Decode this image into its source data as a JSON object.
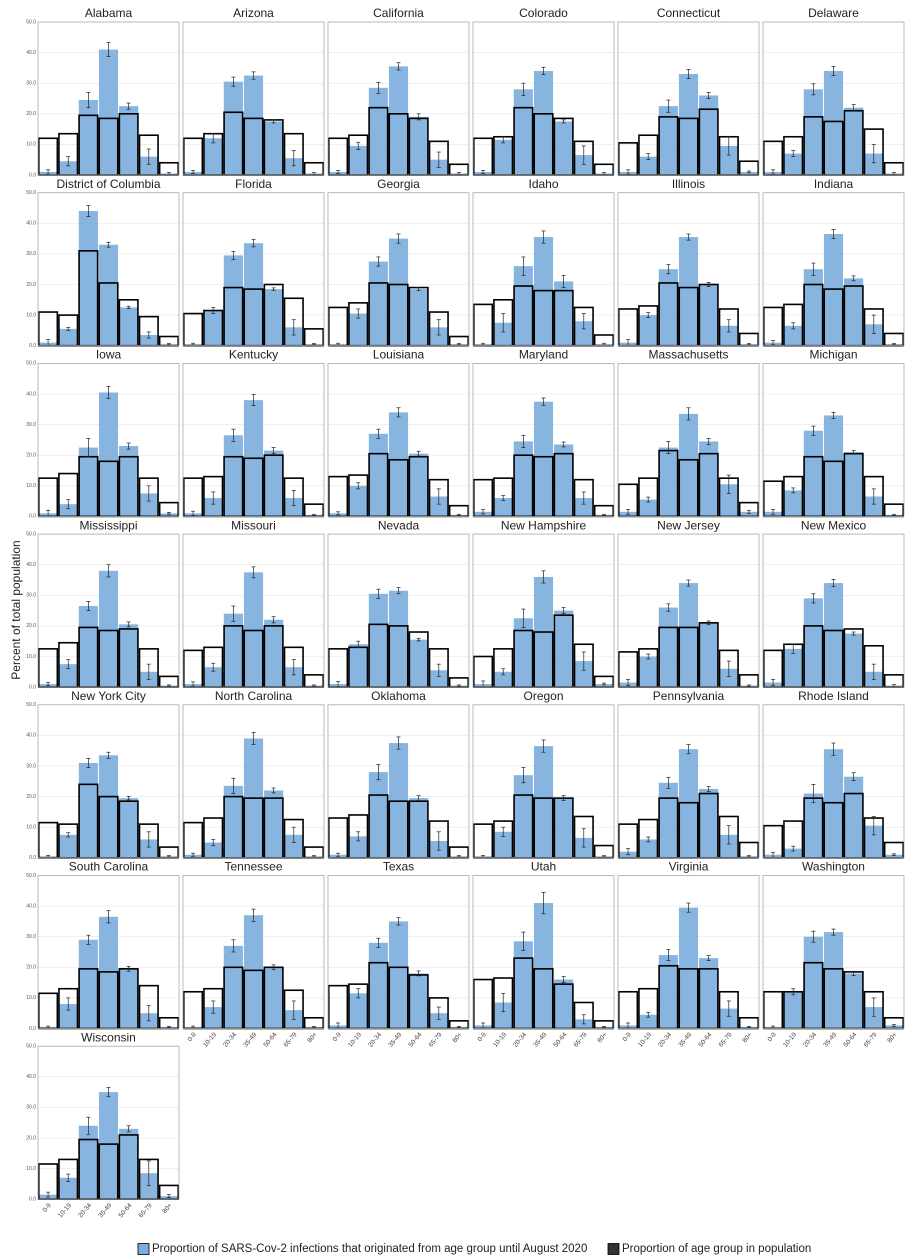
{
  "chart_data": {
    "type": "bar",
    "ylabel": "Percent of total population",
    "categories": [
      "0-9",
      "10-19",
      "20-34",
      "35-49",
      "50-64",
      "65-79",
      "80+"
    ],
    "ylim": [
      0,
      50
    ],
    "yticks": [
      {
        "value": 0,
        "label": "0.0"
      },
      {
        "value": 10,
        "label": "10.0"
      },
      {
        "value": 20,
        "label": "20.0"
      },
      {
        "value": 30,
        "label": "30.0"
      },
      {
        "value": 40,
        "label": "40.0"
      },
      {
        "value": 50,
        "label": "50.0"
      }
    ],
    "grid": true,
    "legend": "bottom",
    "series": [
      {
        "name": "Proportion of SARS-Cov-2 infections that originated from age group until August 2020",
        "color": "#7aaddc"
      },
      {
        "name": "Proportion of age group in population",
        "color": "#333333"
      }
    ],
    "panels": [
      {
        "title": "Alabama",
        "infections": [
          1,
          4.5,
          24.5,
          41,
          22.5,
          6,
          0.5
        ],
        "errors": [
          0.7,
          1.5,
          2.5,
          2.3,
          1,
          2.5,
          0.3
        ],
        "population": [
          12,
          13.5,
          19.5,
          18.5,
          20,
          13,
          4
        ]
      },
      {
        "title": "Arizona",
        "infections": [
          1,
          12,
          30.5,
          32.5,
          17.5,
          5.5,
          0.5
        ],
        "errors": [
          0.5,
          1.5,
          1.5,
          1.2,
          0.5,
          2.5,
          0.3
        ],
        "population": [
          12,
          13.5,
          20.5,
          18.5,
          18,
          13.5,
          4
        ]
      },
      {
        "title": "California",
        "infections": [
          1,
          9.5,
          28.5,
          35.5,
          19,
          5,
          0.5
        ],
        "errors": [
          0.5,
          1.2,
          1.8,
          1.2,
          1,
          2.5,
          0.3
        ],
        "population": [
          12,
          13,
          22,
          20,
          18.5,
          11,
          3.5
        ]
      },
      {
        "title": "Colorado",
        "infections": [
          1,
          11.5,
          28,
          34,
          17.5,
          6.5,
          0.5
        ],
        "errors": [
          0.5,
          1,
          2,
          1.2,
          0.5,
          3,
          0.3
        ],
        "population": [
          12,
          12.5,
          22,
          20,
          18.5,
          11,
          3.5
        ]
      },
      {
        "title": "Connecticut",
        "infections": [
          1,
          6,
          22.5,
          33,
          26,
          9.5,
          1
        ],
        "errors": [
          0.7,
          1,
          2,
          1.5,
          1,
          3,
          0.3
        ],
        "population": [
          10.5,
          13,
          19,
          18.5,
          21.5,
          12.5,
          4.5
        ]
      },
      {
        "title": "Delaware",
        "infections": [
          1,
          7,
          28,
          34,
          22,
          7,
          0.5
        ],
        "errors": [
          0.7,
          1,
          1.8,
          1.5,
          1,
          3,
          0.3
        ],
        "population": [
          11,
          12.5,
          19,
          17.5,
          21,
          15,
          4
        ]
      },
      {
        "title": "District of Columbia",
        "infections": [
          1,
          5.5,
          44,
          33,
          12.5,
          3.5,
          0.5
        ],
        "errors": [
          1,
          0.5,
          1.8,
          0.8,
          0.4,
          1,
          0.2
        ],
        "population": [
          11,
          10,
          31,
          20.5,
          15,
          9.5,
          3
        ]
      },
      {
        "title": "Florida",
        "infections": [
          0.5,
          11.5,
          29.5,
          33.5,
          18.5,
          6,
          0.5
        ],
        "errors": [
          0.3,
          1,
          1.3,
          1.2,
          0.4,
          2.5,
          0.2
        ],
        "population": [
          10.5,
          11.5,
          19,
          18.5,
          20,
          15.5,
          5.5
        ]
      },
      {
        "title": "Georgia",
        "infections": [
          0.5,
          10.5,
          27.5,
          35,
          18.5,
          6,
          0.5
        ],
        "errors": [
          0.3,
          1.5,
          1.5,
          1.5,
          0.5,
          2.5,
          0.2
        ],
        "population": [
          12.5,
          14,
          20.5,
          20,
          19,
          11,
          3
        ]
      },
      {
        "title": "Idaho",
        "infections": [
          0.5,
          7.5,
          26,
          35.5,
          21,
          8,
          0.5
        ],
        "errors": [
          0.3,
          3,
          3,
          2,
          2,
          2.5,
          0.3
        ],
        "population": [
          13.5,
          15,
          19.5,
          18,
          18,
          12.5,
          3.5
        ]
      },
      {
        "title": "Illinois",
        "infections": [
          1,
          10,
          25,
          35.5,
          20,
          6.5,
          0.5
        ],
        "errors": [
          1,
          0.8,
          1.5,
          1,
          0.7,
          2,
          0.2
        ],
        "population": [
          12,
          13,
          20.5,
          19,
          20,
          12,
          4
        ]
      },
      {
        "title": "Indiana",
        "infections": [
          1,
          6.5,
          25,
          36.5,
          22,
          7,
          0.5
        ],
        "errors": [
          0.7,
          1,
          2,
          1.5,
          0.8,
          3,
          0.2
        ],
        "population": [
          12.5,
          13.5,
          20,
          18.5,
          19.5,
          12,
          4
        ]
      },
      {
        "title": "Iowa",
        "infections": [
          1,
          4,
          22.5,
          40.5,
          23,
          7.5,
          1
        ],
        "errors": [
          1,
          1.5,
          3,
          2,
          1,
          2.5,
          0.3
        ],
        "population": [
          12.5,
          14,
          19.5,
          18,
          19.5,
          12.5,
          4.5
        ]
      },
      {
        "title": "Kentucky",
        "infections": [
          1,
          6,
          26.5,
          38,
          21.5,
          6,
          0.5
        ],
        "errors": [
          0.7,
          2,
          2,
          1.8,
          1,
          2.5,
          0.2
        ],
        "population": [
          12.5,
          13,
          19.5,
          19,
          20,
          12.5,
          4
        ]
      },
      {
        "title": "Louisiana",
        "infections": [
          1,
          10,
          27,
          34,
          20.5,
          6.5,
          0.5
        ],
        "errors": [
          0.5,
          1,
          1.5,
          1.5,
          0.8,
          2.5,
          0.2
        ],
        "population": [
          13,
          13.5,
          20.5,
          18.5,
          19.5,
          12,
          3.5
        ]
      },
      {
        "title": "Maryland",
        "infections": [
          1.5,
          6,
          24.5,
          37.5,
          23.5,
          6,
          0.5
        ],
        "errors": [
          0.7,
          0.8,
          2,
          1.2,
          0.8,
          2,
          0.2
        ],
        "population": [
          12,
          12.5,
          20,
          19.5,
          20.5,
          12,
          3.5
        ]
      },
      {
        "title": "Massachusetts",
        "infections": [
          1.5,
          5.5,
          22.5,
          33.5,
          24.5,
          10.5,
          1.5
        ],
        "errors": [
          0.8,
          0.8,
          2,
          2,
          1,
          3,
          0.5
        ],
        "population": [
          10.5,
          12.5,
          21.5,
          18.5,
          20.5,
          12.5,
          4.5
        ]
      },
      {
        "title": "Michigan",
        "infections": [
          1.5,
          8.5,
          28,
          33,
          21,
          6.5,
          0.5
        ],
        "errors": [
          0.8,
          0.8,
          1.5,
          1,
          0.5,
          2.5,
          0.2
        ],
        "population": [
          11.5,
          13,
          19.5,
          18,
          20.5,
          13,
          4
        ]
      },
      {
        "title": "Mississippi",
        "infections": [
          1,
          7.5,
          26.5,
          38,
          20.5,
          5,
          0.5
        ],
        "errors": [
          0.5,
          1.5,
          1.5,
          2,
          0.8,
          2.5,
          0.2
        ],
        "population": [
          12.5,
          14.5,
          19.5,
          18.5,
          19,
          12.5,
          3.5
        ]
      },
      {
        "title": "Missouri",
        "infections": [
          1,
          6.5,
          24,
          37.5,
          22,
          6.5,
          0.5
        ],
        "errors": [
          0.7,
          1.3,
          2.5,
          1.8,
          1,
          2.5,
          0.2
        ],
        "population": [
          12,
          13,
          20,
          18.5,
          20,
          13,
          4
        ]
      },
      {
        "title": "Nevada",
        "infections": [
          1,
          14,
          30.5,
          31.5,
          15.5,
          5.5,
          0.5
        ],
        "errors": [
          0.8,
          1,
          1.5,
          1,
          0.4,
          2,
          0.2
        ],
        "population": [
          12.5,
          13,
          20.5,
          20,
          18,
          12.5,
          3
        ]
      },
      {
        "title": "New Hampshire",
        "infections": [
          1,
          5,
          22.5,
          36,
          25,
          8.5,
          1
        ],
        "errors": [
          1,
          1,
          3,
          2,
          1,
          3,
          0.3
        ],
        "population": [
          10,
          12.5,
          18.5,
          18,
          23.5,
          14,
          3.5
        ]
      },
      {
        "title": "New Jersey",
        "infections": [
          1.5,
          10,
          26,
          34,
          21,
          6,
          0.5
        ],
        "errors": [
          1,
          0.8,
          1.2,
          1,
          0.6,
          2.5,
          0.2
        ],
        "population": [
          11.5,
          12.5,
          19.5,
          19.5,
          21,
          12,
          4
        ]
      },
      {
        "title": "New Mexico",
        "infections": [
          1.5,
          12.5,
          29,
          34,
          17.5,
          5,
          0.5
        ],
        "errors": [
          1,
          1.5,
          1.5,
          1.2,
          0.5,
          2.5,
          0.3
        ],
        "population": [
          12,
          14,
          20,
          18.5,
          19,
          13.5,
          4
        ]
      },
      {
        "title": "New York City",
        "infections": [
          0.5,
          7.5,
          31,
          33.5,
          19.5,
          6,
          0.5
        ],
        "errors": [
          0.3,
          0.7,
          1.5,
          1,
          0.6,
          2.5,
          0.2
        ],
        "population": [
          11.5,
          11,
          24,
          20,
          18.5,
          11,
          3.5
        ]
      },
      {
        "title": "North Carolina",
        "infections": [
          1,
          5,
          23.5,
          39,
          22,
          7.5,
          0.5
        ],
        "errors": [
          0.5,
          1,
          2.5,
          2,
          0.8,
          2.5,
          0.2
        ],
        "population": [
          11.5,
          13,
          20,
          19.5,
          19.5,
          12.5,
          3.5
        ]
      },
      {
        "title": "Oklahoma",
        "infections": [
          1,
          7,
          28,
          37.5,
          19.5,
          5.5,
          0.5
        ],
        "errors": [
          0.5,
          1.5,
          2.5,
          2,
          0.8,
          3,
          0.2
        ],
        "population": [
          13,
          14,
          20.5,
          18.5,
          18.5,
          12,
          3.5
        ]
      },
      {
        "title": "Oregon",
        "infections": [
          0.5,
          8.5,
          27,
          36.5,
          19.5,
          6.5,
          0.5
        ],
        "errors": [
          0.3,
          1.5,
          2.5,
          2,
          0.8,
          3,
          0.2
        ],
        "population": [
          11,
          12,
          20.5,
          19.5,
          19.5,
          13.5,
          4
        ]
      },
      {
        "title": "Pennsylvania",
        "infections": [
          2,
          6,
          24.5,
          35.5,
          22.5,
          7.5,
          0.5
        ],
        "errors": [
          1,
          0.8,
          1.8,
          1.5,
          0.8,
          3,
          0.2
        ],
        "population": [
          11,
          12.5,
          19.5,
          18,
          21,
          13.5,
          5
        ]
      },
      {
        "title": "Rhode Island",
        "infections": [
          1,
          3,
          21,
          35.5,
          26.5,
          10.5,
          1
        ],
        "errors": [
          0.8,
          0.8,
          3,
          2,
          1.3,
          3,
          0.3
        ],
        "population": [
          10.5,
          12,
          19.5,
          18,
          21,
          13,
          5
        ]
      },
      {
        "title": "South Carolina",
        "infections": [
          0.5,
          8,
          29,
          36.5,
          19.5,
          5,
          0.5
        ],
        "errors": [
          0.3,
          2,
          1.5,
          2,
          0.8,
          2.5,
          0.2
        ],
        "population": [
          11.5,
          13,
          19.5,
          18.5,
          19.5,
          14,
          3.5
        ]
      },
      {
        "title": "Tennessee",
        "infections": [
          0.5,
          7,
          27,
          37,
          20,
          6,
          0.5
        ],
        "errors": [
          0.3,
          2,
          2,
          2,
          0.8,
          3,
          0.2
        ],
        "population": [
          12,
          13,
          20,
          19,
          20,
          12.5,
          3.5
        ]
      },
      {
        "title": "Texas",
        "infections": [
          1,
          11.5,
          28,
          35,
          18,
          5,
          0.5
        ],
        "errors": [
          0.8,
          1.5,
          1.5,
          1.2,
          0.8,
          2,
          0.2
        ],
        "population": [
          14,
          14.5,
          21.5,
          20,
          17.5,
          10,
          2.5
        ]
      },
      {
        "title": "Utah",
        "infections": [
          1,
          8.5,
          28.5,
          41,
          16,
          3,
          0.5
        ],
        "errors": [
          0.8,
          3,
          3,
          3.5,
          1,
          1.5,
          0.2
        ],
        "population": [
          16,
          16.5,
          23,
          19.5,
          14.5,
          8.5,
          2.5
        ]
      },
      {
        "title": "Virginia",
        "infections": [
          1,
          4.5,
          24,
          39.5,
          23,
          6.5,
          0.5
        ],
        "errors": [
          0.8,
          0.8,
          1.8,
          1.5,
          0.8,
          2.5,
          0.2
        ],
        "population": [
          12,
          13,
          20.5,
          19.5,
          19.5,
          12,
          3.5
        ]
      },
      {
        "title": "Washington",
        "infections": [
          0.5,
          12,
          30,
          31.5,
          18,
          7,
          1
        ],
        "errors": [
          0.3,
          1,
          1.8,
          1,
          0.7,
          3,
          0.3
        ],
        "population": [
          12,
          12,
          21.5,
          19.5,
          18.5,
          12,
          3.5
        ]
      },
      {
        "title": "Wisconsin",
        "infections": [
          1.5,
          7,
          24,
          35,
          23,
          8.5,
          1
        ],
        "errors": [
          0.8,
          1.2,
          2.8,
          1.5,
          1,
          4,
          0.5
        ],
        "population": [
          11.5,
          13,
          19.5,
          18,
          21,
          13,
          4.5
        ]
      }
    ]
  }
}
